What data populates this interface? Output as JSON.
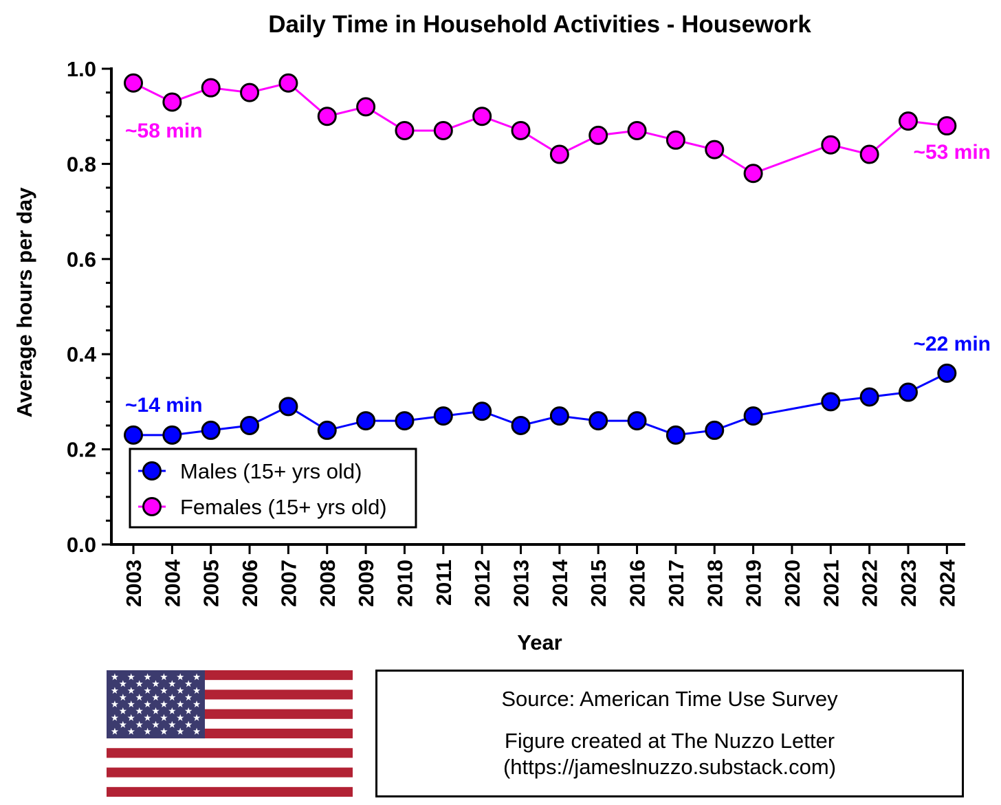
{
  "chart_data": {
    "type": "line",
    "title": "Daily Time in Household Activities - Housework",
    "xlabel": "Year",
    "ylabel": "Average hours per day",
    "ylim": [
      0,
      1.0
    ],
    "yticks": [
      "0.0",
      "0.2",
      "0.4",
      "0.6",
      "0.8",
      "1.0"
    ],
    "categories": [
      "2003",
      "2004",
      "2005",
      "2006",
      "2007",
      "2008",
      "2009",
      "2010",
      "2011",
      "2012",
      "2013",
      "2014",
      "2015",
      "2016",
      "2017",
      "2018",
      "2019",
      "2020",
      "2021",
      "2022",
      "2023",
      "2024"
    ],
    "series": [
      {
        "name": "Males (15+ yrs old)",
        "color": "#0000ff",
        "values": [
          0.23,
          0.23,
          0.24,
          0.25,
          0.29,
          0.24,
          0.26,
          0.26,
          0.27,
          0.28,
          0.25,
          0.27,
          0.26,
          0.26,
          0.23,
          0.24,
          0.27,
          null,
          0.3,
          0.31,
          0.32,
          0.36
        ]
      },
      {
        "name": "Females (15+ yrs old)",
        "color": "#ff00ff",
        "values": [
          0.97,
          0.93,
          0.96,
          0.95,
          0.97,
          0.9,
          0.92,
          0.87,
          0.87,
          0.9,
          0.87,
          0.82,
          0.86,
          0.87,
          0.85,
          0.83,
          0.78,
          null,
          0.84,
          0.82,
          0.89,
          0.88
        ]
      }
    ],
    "annotations": [
      {
        "text": "~58 min",
        "series": 1,
        "color": "#ff00ff"
      },
      {
        "text": "~53 min",
        "series": 1,
        "color": "#ff00ff"
      },
      {
        "text": "~14 min",
        "series": 0,
        "color": "#0000ff"
      },
      {
        "text": "~22 min",
        "series": 0,
        "color": "#0000ff"
      }
    ],
    "legend": "bottom-left"
  },
  "source": {
    "line1": "Source: American Time Use Survey",
    "line2": "Figure created at The Nuzzo Letter",
    "line3": "(https://jameslnuzzo.substack.com)"
  },
  "flag": {
    "blue": "#3c3b6e",
    "red": "#b22234",
    "white": "#ffffff"
  }
}
